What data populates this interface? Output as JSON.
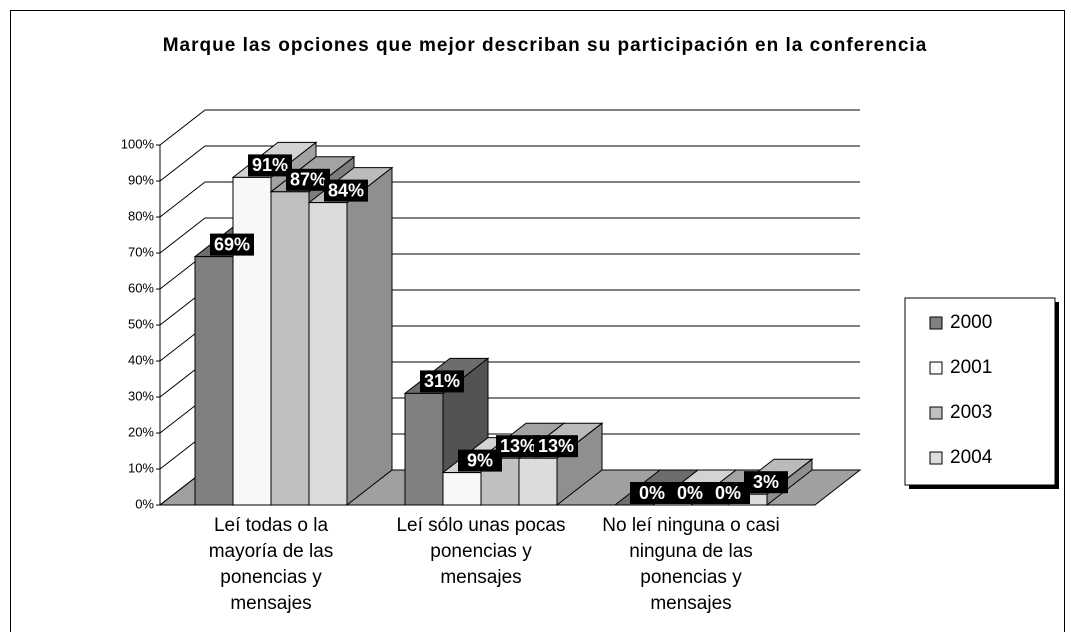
{
  "chart_data": {
    "type": "bar3d",
    "title": "Marque las opciones que mejor describan su participación en la conferencia",
    "categories": [
      "Leí todas o la mayoría de las ponencias y mensajes",
      "Leí sólo unas pocas ponencias y mensajes",
      "No leí ninguna o casi ninguna de las ponencias y mensajes"
    ],
    "series": [
      {
        "name": "2000",
        "color": "#808080",
        "values": [
          69,
          31,
          0
        ],
        "value_labels": [
          "69%",
          "31%",
          "0%"
        ]
      },
      {
        "name": "2001",
        "color": "#f8f8f8",
        "values": [
          91,
          9,
          0
        ],
        "value_labels": [
          "91%",
          "9%",
          "0%"
        ]
      },
      {
        "name": "2003",
        "color": "#c0c0c0",
        "values": [
          87,
          13,
          0
        ],
        "value_labels": [
          "87%",
          "13%",
          "0%"
        ]
      },
      {
        "name": "2004",
        "color": "#dcdcdc",
        "values": [
          84,
          13,
          3
        ],
        "value_labels": [
          "84%",
          "13%",
          "3%"
        ]
      }
    ],
    "ylim": [
      0,
      100
    ],
    "yticks": [
      {
        "value": 0,
        "label": "0%"
      },
      {
        "value": 10,
        "label": "10%"
      },
      {
        "value": 20,
        "label": "20%"
      },
      {
        "value": 30,
        "label": "30%"
      },
      {
        "value": 40,
        "label": "40%"
      },
      {
        "value": 50,
        "label": "50%"
      },
      {
        "value": 60,
        "label": "60%"
      },
      {
        "value": 70,
        "label": "70%"
      },
      {
        "value": 80,
        "label": "80%"
      },
      {
        "value": 90,
        "label": "90%"
      },
      {
        "value": 100,
        "label": "100%"
      }
    ],
    "grid": true,
    "legend": "right"
  }
}
